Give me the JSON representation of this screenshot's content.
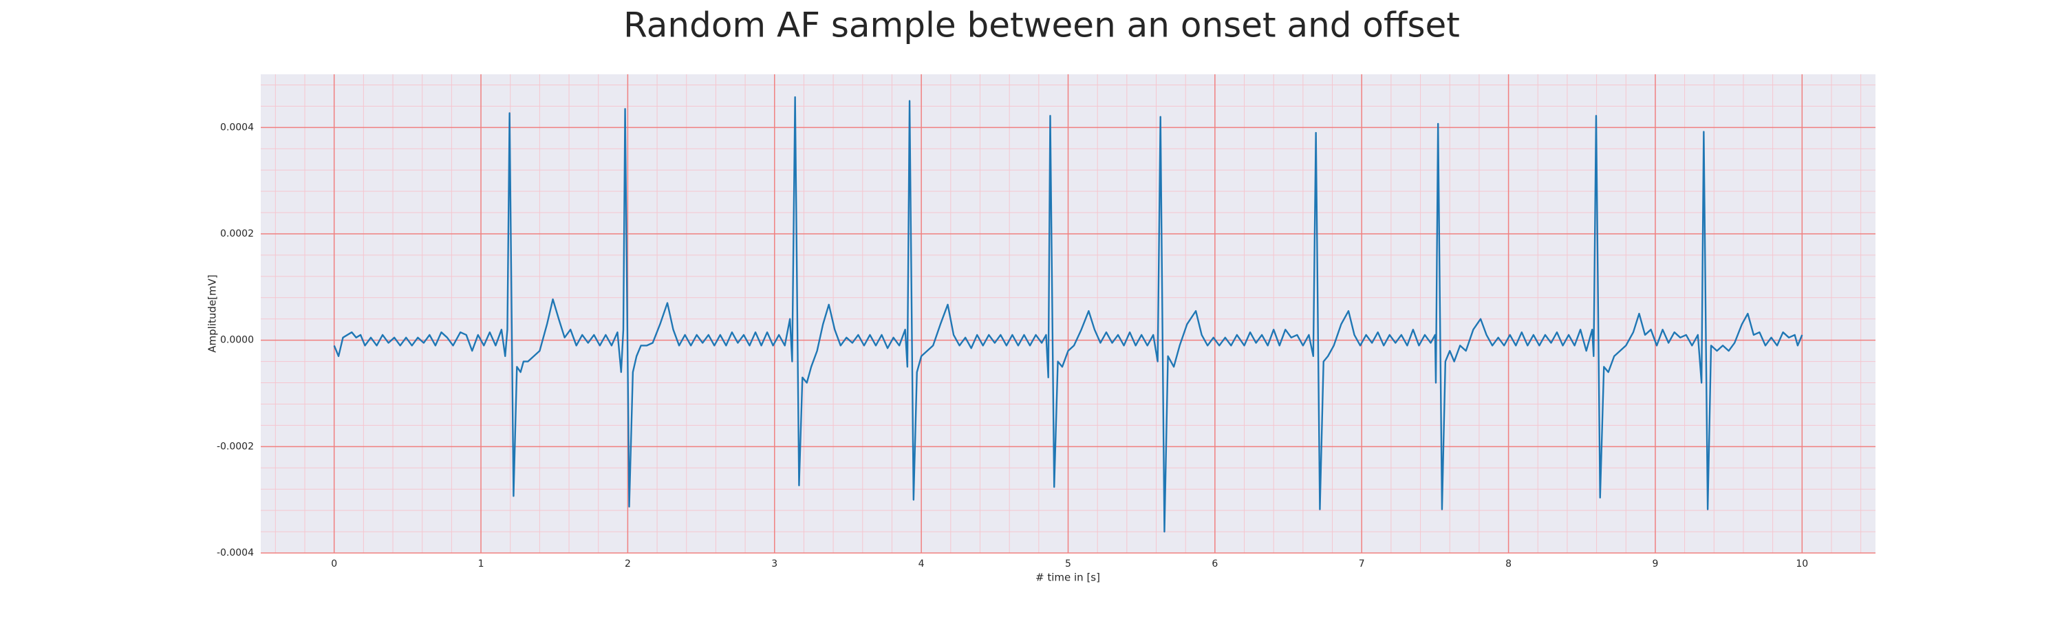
{
  "chart_data": {
    "type": "line",
    "title": "Random AF sample between an onset and offset",
    "xlabel": "# time in [s]",
    "ylabel": "Amplitude[mV]",
    "xlim": [
      -0.5,
      10.5
    ],
    "ylim": [
      -0.0004,
      0.0005
    ],
    "xticks": [
      0,
      1,
      2,
      3,
      4,
      5,
      6,
      7,
      8,
      9,
      10
    ],
    "yticks": [
      -0.0004,
      -0.0002,
      {
        "value": 0,
        "label": "0.0000"
      },
      0.0002,
      0.0004
    ],
    "grid": true,
    "minor_grid": true,
    "background": "#eaeaf2",
    "grid_color": "#f08080",
    "minor_grid_color": "#f5c6cf",
    "x": [
      0.0,
      0.03,
      0.06,
      0.09,
      0.12,
      0.15,
      0.18,
      0.21,
      0.25,
      0.29,
      0.33,
      0.37,
      0.41,
      0.45,
      0.49,
      0.53,
      0.57,
      0.61,
      0.65,
      0.69,
      0.73,
      0.77,
      0.81,
      0.86,
      0.9,
      0.94,
      0.98,
      1.02,
      1.06,
      1.1,
      1.14,
      1.165,
      1.18,
      1.195,
      1.222,
      1.245,
      1.27,
      1.29,
      1.32,
      1.36,
      1.4,
      1.45,
      1.49,
      1.53,
      1.57,
      1.61,
      1.65,
      1.69,
      1.73,
      1.77,
      1.81,
      1.85,
      1.89,
      1.93,
      1.955,
      1.97,
      1.982,
      2.01,
      2.035,
      2.06,
      2.09,
      2.13,
      2.17,
      2.22,
      2.27,
      2.31,
      2.35,
      2.39,
      2.43,
      2.47,
      2.51,
      2.55,
      2.59,
      2.63,
      2.67,
      2.71,
      2.75,
      2.79,
      2.83,
      2.87,
      2.91,
      2.95,
      2.99,
      3.03,
      3.07,
      3.105,
      3.12,
      3.14,
      3.167,
      3.19,
      3.22,
      3.25,
      3.29,
      3.33,
      3.37,
      3.41,
      3.45,
      3.49,
      3.53,
      3.57,
      3.61,
      3.65,
      3.69,
      3.73,
      3.77,
      3.81,
      3.85,
      3.89,
      3.905,
      3.92,
      3.947,
      3.97,
      4.0,
      4.04,
      4.08,
      4.13,
      4.18,
      4.22,
      4.26,
      4.3,
      4.34,
      4.38,
      4.42,
      4.46,
      4.5,
      4.54,
      4.58,
      4.62,
      4.66,
      4.7,
      4.74,
      4.78,
      4.82,
      4.85,
      4.865,
      4.878,
      4.905,
      4.93,
      4.96,
      5.0,
      5.04,
      5.09,
      5.14,
      5.18,
      5.22,
      5.26,
      5.3,
      5.34,
      5.38,
      5.42,
      5.46,
      5.5,
      5.54,
      5.58,
      5.61,
      5.629,
      5.656,
      5.68,
      5.72,
      5.76,
      5.81,
      5.87,
      5.91,
      5.95,
      5.99,
      6.03,
      6.07,
      6.11,
      6.15,
      6.2,
      6.24,
      6.28,
      6.32,
      6.36,
      6.4,
      6.44,
      6.48,
      6.52,
      6.56,
      6.6,
      6.64,
      6.67,
      6.688,
      6.715,
      6.74,
      6.77,
      6.81,
      6.86,
      6.91,
      6.95,
      6.99,
      7.03,
      7.07,
      7.11,
      7.15,
      7.19,
      7.23,
      7.27,
      7.31,
      7.35,
      7.39,
      7.43,
      7.47,
      7.5,
      7.505,
      7.52,
      7.547,
      7.57,
      7.6,
      7.63,
      7.67,
      7.71,
      7.76,
      7.81,
      7.85,
      7.89,
      7.93,
      7.97,
      8.01,
      8.05,
      8.09,
      8.13,
      8.17,
      8.21,
      8.25,
      8.29,
      8.33,
      8.37,
      8.41,
      8.45,
      8.49,
      8.53,
      8.57,
      8.58,
      8.597,
      8.624,
      8.65,
      8.68,
      8.72,
      8.76,
      8.8,
      8.85,
      8.89,
      8.93,
      8.97,
      9.01,
      9.05,
      9.09,
      9.13,
      9.17,
      9.21,
      9.25,
      9.29,
      9.315,
      9.33,
      9.357,
      9.38,
      9.42,
      9.46,
      9.5,
      9.54,
      9.59,
      9.63,
      9.67,
      9.71,
      9.75,
      9.79,
      9.83,
      9.87,
      9.91,
      9.95,
      9.97,
      10.0
    ],
    "series": [
      {
        "color": "#1f77b4",
        "values": [
          -1e-05,
          -3e-05,
          5e-06,
          1e-05,
          1.5e-05,
          5e-06,
          1e-05,
          -1e-05,
          5e-06,
          -1e-05,
          1e-05,
          -5e-06,
          5e-06,
          -1e-05,
          5e-06,
          -1e-05,
          5e-06,
          -5e-06,
          1e-05,
          -1e-05,
          1.5e-05,
          5e-06,
          -1e-05,
          1.5e-05,
          1e-05,
          -2e-05,
          1e-05,
          -1e-05,
          1.5e-05,
          -1e-05,
          2e-05,
          -3e-05,
          2e-05,
          0.000427,
          -0.000293,
          -5e-05,
          -6e-05,
          -4e-05,
          -4e-05,
          -3e-05,
          -2e-05,
          3e-05,
          7.7e-05,
          4e-05,
          5e-06,
          2e-05,
          -1e-05,
          1e-05,
          -5e-06,
          1e-05,
          -1e-05,
          1e-05,
          -1e-05,
          1.5e-05,
          -6e-05,
          2e-05,
          0.000435,
          -0.000313,
          -6e-05,
          -3e-05,
          -1e-05,
          -1e-05,
          -5e-06,
          3e-05,
          7e-05,
          2e-05,
          -1e-05,
          1e-05,
          -1e-05,
          1e-05,
          -5e-06,
          1e-05,
          -1e-05,
          1e-05,
          -1e-05,
          1.5e-05,
          -5e-06,
          1e-05,
          -1e-05,
          1.5e-05,
          -1e-05,
          1.5e-05,
          -1e-05,
          1e-05,
          -1e-05,
          4e-05,
          -4e-05,
          0.000457,
          -0.000273,
          -7e-05,
          -8e-05,
          -5e-05,
          -2e-05,
          3e-05,
          6.7e-05,
          2e-05,
          -1e-05,
          5e-06,
          -5e-06,
          1e-05,
          -1e-05,
          1e-05,
          -1e-05,
          1e-05,
          -1.5e-05,
          5e-06,
          -1e-05,
          2e-05,
          -5e-05,
          0.00045,
          -0.0003,
          -6e-05,
          -3e-05,
          -2e-05,
          -1e-05,
          3e-05,
          6.7e-05,
          1e-05,
          -1e-05,
          5e-06,
          -1.5e-05,
          1e-05,
          -1e-05,
          1e-05,
          -5e-06,
          1e-05,
          -1e-05,
          1e-05,
          -1e-05,
          1e-05,
          -1e-05,
          1e-05,
          -5e-06,
          1e-05,
          -7e-05,
          0.000422,
          -0.000276,
          -4e-05,
          -5e-05,
          -2e-05,
          -1e-05,
          2e-05,
          5.5e-05,
          2e-05,
          -5e-06,
          1.5e-05,
          -5e-06,
          1e-05,
          -1e-05,
          1.5e-05,
          -1e-05,
          1e-05,
          -1e-05,
          1e-05,
          -4e-05,
          0.00042,
          -0.00036,
          -3e-05,
          -5e-05,
          -1e-05,
          3e-05,
          5.5e-05,
          1e-05,
          -1e-05,
          5e-06,
          -1e-05,
          5e-06,
          -1e-05,
          1e-05,
          -1e-05,
          1.5e-05,
          -5e-06,
          1e-05,
          -1e-05,
          2e-05,
          -1e-05,
          2e-05,
          5e-06,
          1e-05,
          -1e-05,
          1e-05,
          -3e-05,
          0.00039,
          -0.000318,
          -4e-05,
          -3e-05,
          -1e-05,
          3e-05,
          5.5e-05,
          1e-05,
          -1e-05,
          1e-05,
          -5e-06,
          1.5e-05,
          -1e-05,
          1e-05,
          -5e-06,
          1e-05,
          -1e-05,
          2e-05,
          -1e-05,
          1e-05,
          -5e-06,
          1e-05,
          -8e-05,
          0.000407,
          -0.000318,
          -4e-05,
          -2e-05,
          -4e-05,
          -1e-05,
          -2e-05,
          2e-05,
          4e-05,
          1e-05,
          -1e-05,
          5e-06,
          -1e-05,
          1e-05,
          -1e-05,
          1.5e-05,
          -1e-05,
          1e-05,
          -1e-05,
          1e-05,
          -5e-06,
          1.5e-05,
          -1e-05,
          1e-05,
          -1e-05,
          2e-05,
          -2e-05,
          2e-05,
          -3e-05,
          0.000422,
          -0.000296,
          -5e-05,
          -6e-05,
          -3e-05,
          -2e-05,
          -1e-05,
          1.5e-05,
          5e-05,
          1e-05,
          2e-05,
          -1e-05,
          2e-05,
          -5e-06,
          1.5e-05,
          5e-06,
          1e-05,
          -1e-05,
          1e-05,
          -8e-05,
          0.000392,
          -0.000318,
          -1e-05,
          -2e-05,
          -1e-05,
          -2e-05,
          -5e-06,
          3e-05,
          5e-05,
          1e-05,
          1.5e-05,
          -1e-05,
          5e-06,
          -1e-05,
          1.5e-05,
          5e-06,
          1e-05,
          -1e-05,
          1e-05
        ]
      }
    ]
  }
}
